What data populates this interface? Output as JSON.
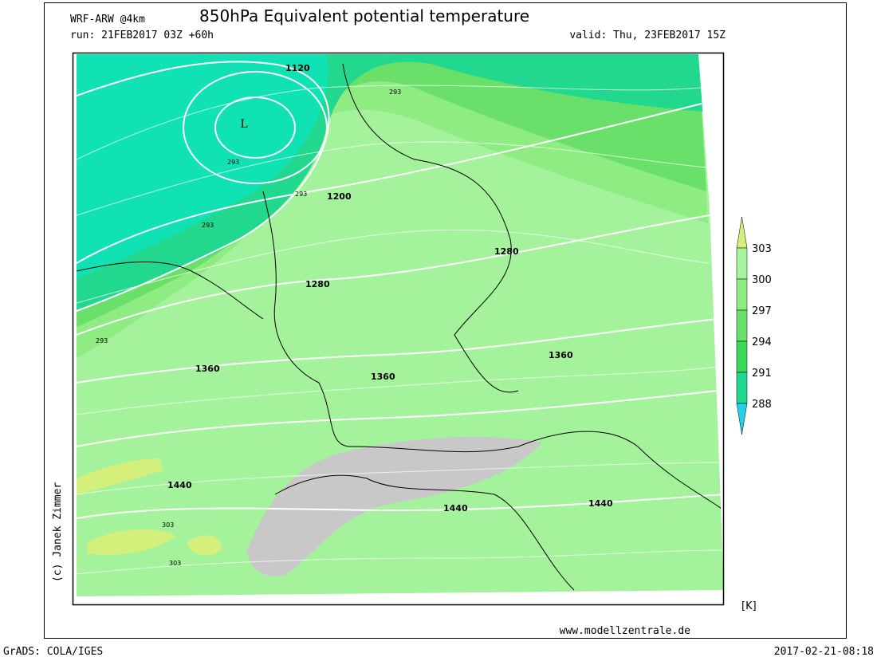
{
  "header": {
    "model": "WRF-ARW @4km",
    "title": "850hPa Equivalent potential temperature",
    "run": "run: 21FEB2017 03Z +60h",
    "valid": "valid: Thu, 23FEB2017 15Z"
  },
  "map": {
    "low_label": "L",
    "geopotential_labels": [
      "1120",
      "1200",
      "1280",
      "1280",
      "1360",
      "1360",
      "1360",
      "1440",
      "1440",
      "1440"
    ],
    "theta_e_labels": [
      "293",
      "293",
      "293",
      "293",
      "293",
      "303",
      "303"
    ]
  },
  "colorbar": {
    "levels": [
      303,
      300,
      297,
      294,
      291,
      288
    ],
    "colors": [
      "#d4f07a",
      "#a8f5a0",
      "#8eec82",
      "#6ae06a",
      "#3cd85a",
      "#20d890",
      "#10e2b4",
      "#20d2ea"
    ],
    "unit": "[K]"
  },
  "footer": {
    "credit": "(c) Janek Zimmer",
    "website": "www.modellzentrale.de",
    "software": "GrADS: COLA/IGES",
    "timestamp": "2017-02-21-08:18"
  }
}
